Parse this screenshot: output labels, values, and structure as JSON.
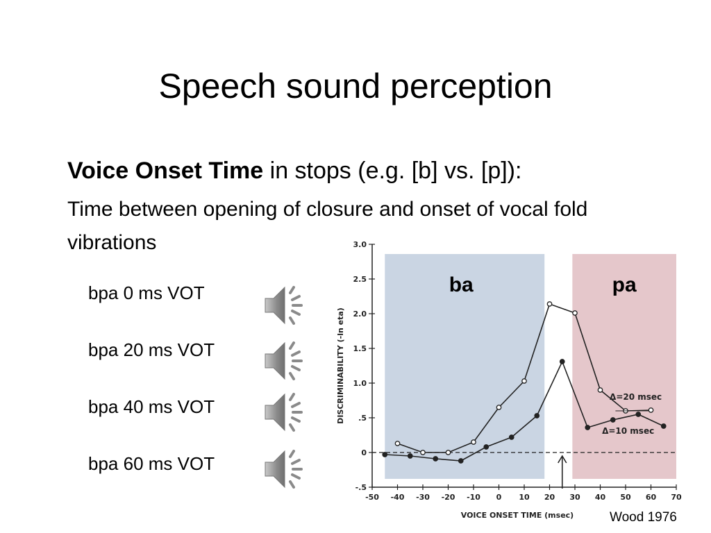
{
  "slide": {
    "title": "Speech sound perception",
    "heading_bold": "Voice Onset Time",
    "heading_rest": " in stops (e.g. [b] vs. [p]):",
    "description": "Time between opening of closure and onset of vocal fold vibrations",
    "caption": "Wood 1976"
  },
  "sounds": [
    {
      "label": "bpa 0 ms VOT",
      "icon": "speaker-icon"
    },
    {
      "label": "bpa 20 ms VOT",
      "icon": "speaker-icon"
    },
    {
      "label": "bpa 40 ms VOT",
      "icon": "speaker-icon"
    },
    {
      "label": "bpa 60 ms VOT",
      "icon": "speaker-icon"
    }
  ],
  "colors": {
    "ba_region": "#c7d3e2",
    "pa_region": "#e4c4c8",
    "plot_ink": "#222222",
    "speaker": "#8a8a8a"
  },
  "chart_data": {
    "type": "line",
    "xlabel": "VOICE ONSET TIME (msec)",
    "ylabel": "DISCRIMINABILITY (-ln eta)",
    "xlim": [
      -50,
      70
    ],
    "ylim": [
      -0.5,
      3.0
    ],
    "x_ticks": [
      -50,
      -40,
      -30,
      -20,
      -10,
      0,
      10,
      20,
      30,
      40,
      50,
      60,
      70
    ],
    "y_ticks": [
      -0.5,
      0,
      0.5,
      1.0,
      1.5,
      2.0,
      2.5,
      3.0
    ],
    "y_tick_labels": [
      "-.5",
      "0",
      ".5",
      "1.0",
      "1.5",
      "2.0",
      "2.5",
      "3.0"
    ],
    "regions": [
      {
        "label": "ba",
        "x": [
          -45,
          18
        ]
      },
      {
        "label": "pa",
        "x": [
          29,
          70
        ]
      }
    ],
    "arrow_x": 25,
    "series": [
      {
        "name": "Δ=20 msec",
        "marker": "open",
        "x": [
          -40,
          -30,
          -20,
          -10,
          0,
          10,
          20,
          30,
          40,
          50,
          60
        ],
        "y": [
          0.13,
          0.0,
          0.0,
          0.15,
          0.65,
          1.03,
          2.14,
          2.01,
          0.9,
          0.6,
          0.61
        ]
      },
      {
        "name": "Δ=10 msec",
        "marker": "filled",
        "x": [
          -45,
          -35,
          -25,
          -15,
          -5,
          5,
          15,
          25,
          35,
          45,
          55,
          65
        ],
        "y": [
          -0.03,
          -0.05,
          -0.09,
          -0.12,
          0.08,
          0.22,
          0.53,
          1.31,
          0.36,
          0.47,
          0.55,
          0.38
        ]
      }
    ]
  }
}
